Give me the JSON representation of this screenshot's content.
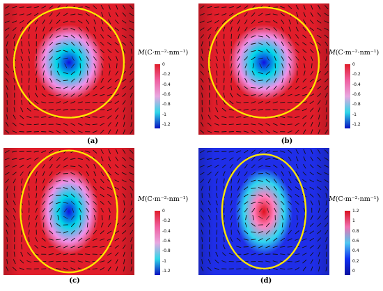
{
  "colorbar_title": {
    "symbol": "M",
    "units": "(C·m⁻²·nm⁻¹)"
  },
  "panels": [
    {
      "id": "a",
      "label": "(a)",
      "ticks": [
        "0",
        "-0.2",
        "-0.4",
        "-0.6",
        "-0.8",
        "-1",
        "-1.2"
      ],
      "scale": "negative",
      "field_range": [
        -1.3,
        0
      ],
      "background": "#e01d2a",
      "core_stops": [
        "#1010e0",
        "#00d8e8",
        "#f090e8",
        "#e01d2a"
      ],
      "core_shape": {
        "rx": 0.27,
        "ry": 0.29,
        "cy": 0.45
      },
      "ellipse": {
        "rx": 0.42,
        "ry": 0.42,
        "cy": 0.45
      },
      "ellipse_color": "#ffe600"
    },
    {
      "id": "b",
      "label": "(b)",
      "ticks": [
        "0",
        "-0.2",
        "-0.4",
        "-0.6",
        "-0.8",
        "-1",
        "-1.2"
      ],
      "scale": "negative",
      "field_range": [
        -1.3,
        0
      ],
      "background": "#e01d2a",
      "core_stops": [
        "#1010e0",
        "#00d8e8",
        "#f090e8",
        "#e01d2a"
      ],
      "core_shape": {
        "rx": 0.27,
        "ry": 0.29,
        "cy": 0.45
      },
      "ellipse": {
        "rx": 0.42,
        "ry": 0.42,
        "cy": 0.45
      },
      "ellipse_color": "#ffe600"
    },
    {
      "id": "c",
      "label": "(c)",
      "ticks": [
        "0",
        "-0.2",
        "-0.4",
        "-0.6",
        "-0.8",
        "-1",
        "-1.2"
      ],
      "scale": "negative",
      "field_range": [
        -1.3,
        0
      ],
      "background": "#e01d2a",
      "core_stops": [
        "#1010e0",
        "#00d8e8",
        "#f090e8",
        "#e01d2a"
      ],
      "core_shape": {
        "rx": 0.23,
        "ry": 0.34,
        "cy": 0.5
      },
      "ellipse": {
        "rx": 0.37,
        "ry": 0.48,
        "cy": 0.5
      },
      "ellipse_color": "#ffe600"
    },
    {
      "id": "d",
      "label": "(d)",
      "ticks": [
        "1.2",
        "1",
        "0.8",
        "0.6",
        "0.4",
        "0.2",
        "0"
      ],
      "scale": "positive",
      "field_range": [
        0,
        1.3
      ],
      "background": "#1f2ee8",
      "core_stops": [
        "#e0101c",
        "#ff80c0",
        "#30d8f0",
        "#1f2ee8"
      ],
      "core_shape": {
        "rx": 0.22,
        "ry": 0.34,
        "cy": 0.5
      },
      "ellipse": {
        "rx": 0.32,
        "ry": 0.45,
        "cy": 0.5
      },
      "ellipse_color": "#ffe600"
    }
  ],
  "colorbar_stops_negative": [
    "#e01d2a",
    "#f060a0",
    "#e8a8e0",
    "#30d8e8",
    "#0a10c0"
  ],
  "colorbar_stops_positive": [
    "#d81020",
    "#f070b0",
    "#50c8f0",
    "#1030f0",
    "#0a10a0"
  ]
}
